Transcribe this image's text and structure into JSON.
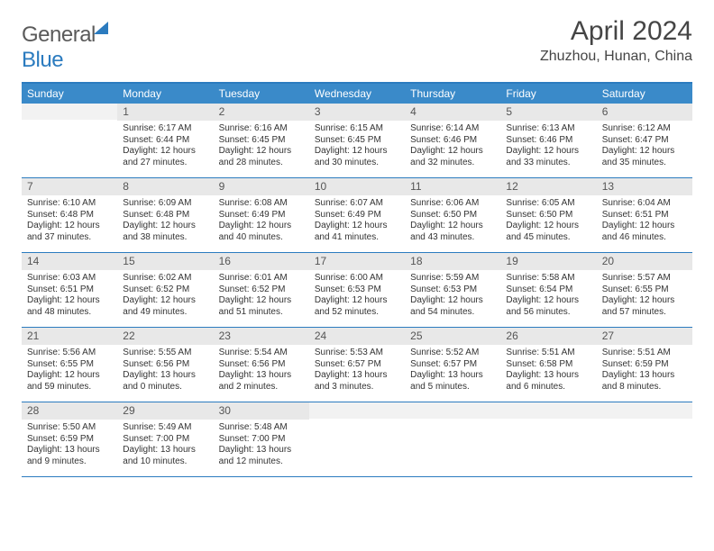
{
  "brand": {
    "text1": "General",
    "text2": "Blue"
  },
  "title": "April 2024",
  "subtitle": "Zhuzhou, Hunan, China",
  "dayNames": [
    "Sunday",
    "Monday",
    "Tuesday",
    "Wednesday",
    "Thursday",
    "Friday",
    "Saturday"
  ],
  "colors": {
    "headerBar": "#3a8ac9",
    "accent": "#2b7bbf",
    "dayNumBg": "#e8e8e8"
  },
  "weeks": [
    [
      {
        "n": "",
        "empty": true
      },
      {
        "n": "1",
        "sr": "6:17 AM",
        "ss": "6:44 PM",
        "dl": "12 hours and 27 minutes."
      },
      {
        "n": "2",
        "sr": "6:16 AM",
        "ss": "6:45 PM",
        "dl": "12 hours and 28 minutes."
      },
      {
        "n": "3",
        "sr": "6:15 AM",
        "ss": "6:45 PM",
        "dl": "12 hours and 30 minutes."
      },
      {
        "n": "4",
        "sr": "6:14 AM",
        "ss": "6:46 PM",
        "dl": "12 hours and 32 minutes."
      },
      {
        "n": "5",
        "sr": "6:13 AM",
        "ss": "6:46 PM",
        "dl": "12 hours and 33 minutes."
      },
      {
        "n": "6",
        "sr": "6:12 AM",
        "ss": "6:47 PM",
        "dl": "12 hours and 35 minutes."
      }
    ],
    [
      {
        "n": "7",
        "sr": "6:10 AM",
        "ss": "6:48 PM",
        "dl": "12 hours and 37 minutes."
      },
      {
        "n": "8",
        "sr": "6:09 AM",
        "ss": "6:48 PM",
        "dl": "12 hours and 38 minutes."
      },
      {
        "n": "9",
        "sr": "6:08 AM",
        "ss": "6:49 PM",
        "dl": "12 hours and 40 minutes."
      },
      {
        "n": "10",
        "sr": "6:07 AM",
        "ss": "6:49 PM",
        "dl": "12 hours and 41 minutes."
      },
      {
        "n": "11",
        "sr": "6:06 AM",
        "ss": "6:50 PM",
        "dl": "12 hours and 43 minutes."
      },
      {
        "n": "12",
        "sr": "6:05 AM",
        "ss": "6:50 PM",
        "dl": "12 hours and 45 minutes."
      },
      {
        "n": "13",
        "sr": "6:04 AM",
        "ss": "6:51 PM",
        "dl": "12 hours and 46 minutes."
      }
    ],
    [
      {
        "n": "14",
        "sr": "6:03 AM",
        "ss": "6:51 PM",
        "dl": "12 hours and 48 minutes."
      },
      {
        "n": "15",
        "sr": "6:02 AM",
        "ss": "6:52 PM",
        "dl": "12 hours and 49 minutes."
      },
      {
        "n": "16",
        "sr": "6:01 AM",
        "ss": "6:52 PM",
        "dl": "12 hours and 51 minutes."
      },
      {
        "n": "17",
        "sr": "6:00 AM",
        "ss": "6:53 PM",
        "dl": "12 hours and 52 minutes."
      },
      {
        "n": "18",
        "sr": "5:59 AM",
        "ss": "6:53 PM",
        "dl": "12 hours and 54 minutes."
      },
      {
        "n": "19",
        "sr": "5:58 AM",
        "ss": "6:54 PM",
        "dl": "12 hours and 56 minutes."
      },
      {
        "n": "20",
        "sr": "5:57 AM",
        "ss": "6:55 PM",
        "dl": "12 hours and 57 minutes."
      }
    ],
    [
      {
        "n": "21",
        "sr": "5:56 AM",
        "ss": "6:55 PM",
        "dl": "12 hours and 59 minutes."
      },
      {
        "n": "22",
        "sr": "5:55 AM",
        "ss": "6:56 PM",
        "dl": "13 hours and 0 minutes."
      },
      {
        "n": "23",
        "sr": "5:54 AM",
        "ss": "6:56 PM",
        "dl": "13 hours and 2 minutes."
      },
      {
        "n": "24",
        "sr": "5:53 AM",
        "ss": "6:57 PM",
        "dl": "13 hours and 3 minutes."
      },
      {
        "n": "25",
        "sr": "5:52 AM",
        "ss": "6:57 PM",
        "dl": "13 hours and 5 minutes."
      },
      {
        "n": "26",
        "sr": "5:51 AM",
        "ss": "6:58 PM",
        "dl": "13 hours and 6 minutes."
      },
      {
        "n": "27",
        "sr": "5:51 AM",
        "ss": "6:59 PM",
        "dl": "13 hours and 8 minutes."
      }
    ],
    [
      {
        "n": "28",
        "sr": "5:50 AM",
        "ss": "6:59 PM",
        "dl": "13 hours and 9 minutes."
      },
      {
        "n": "29",
        "sr": "5:49 AM",
        "ss": "7:00 PM",
        "dl": "13 hours and 10 minutes."
      },
      {
        "n": "30",
        "sr": "5:48 AM",
        "ss": "7:00 PM",
        "dl": "13 hours and 12 minutes."
      },
      {
        "n": "",
        "empty": true
      },
      {
        "n": "",
        "empty": true
      },
      {
        "n": "",
        "empty": true
      },
      {
        "n": "",
        "empty": true
      }
    ]
  ],
  "labels": {
    "sunrise": "Sunrise:",
    "sunset": "Sunset:",
    "daylight": "Daylight:"
  }
}
